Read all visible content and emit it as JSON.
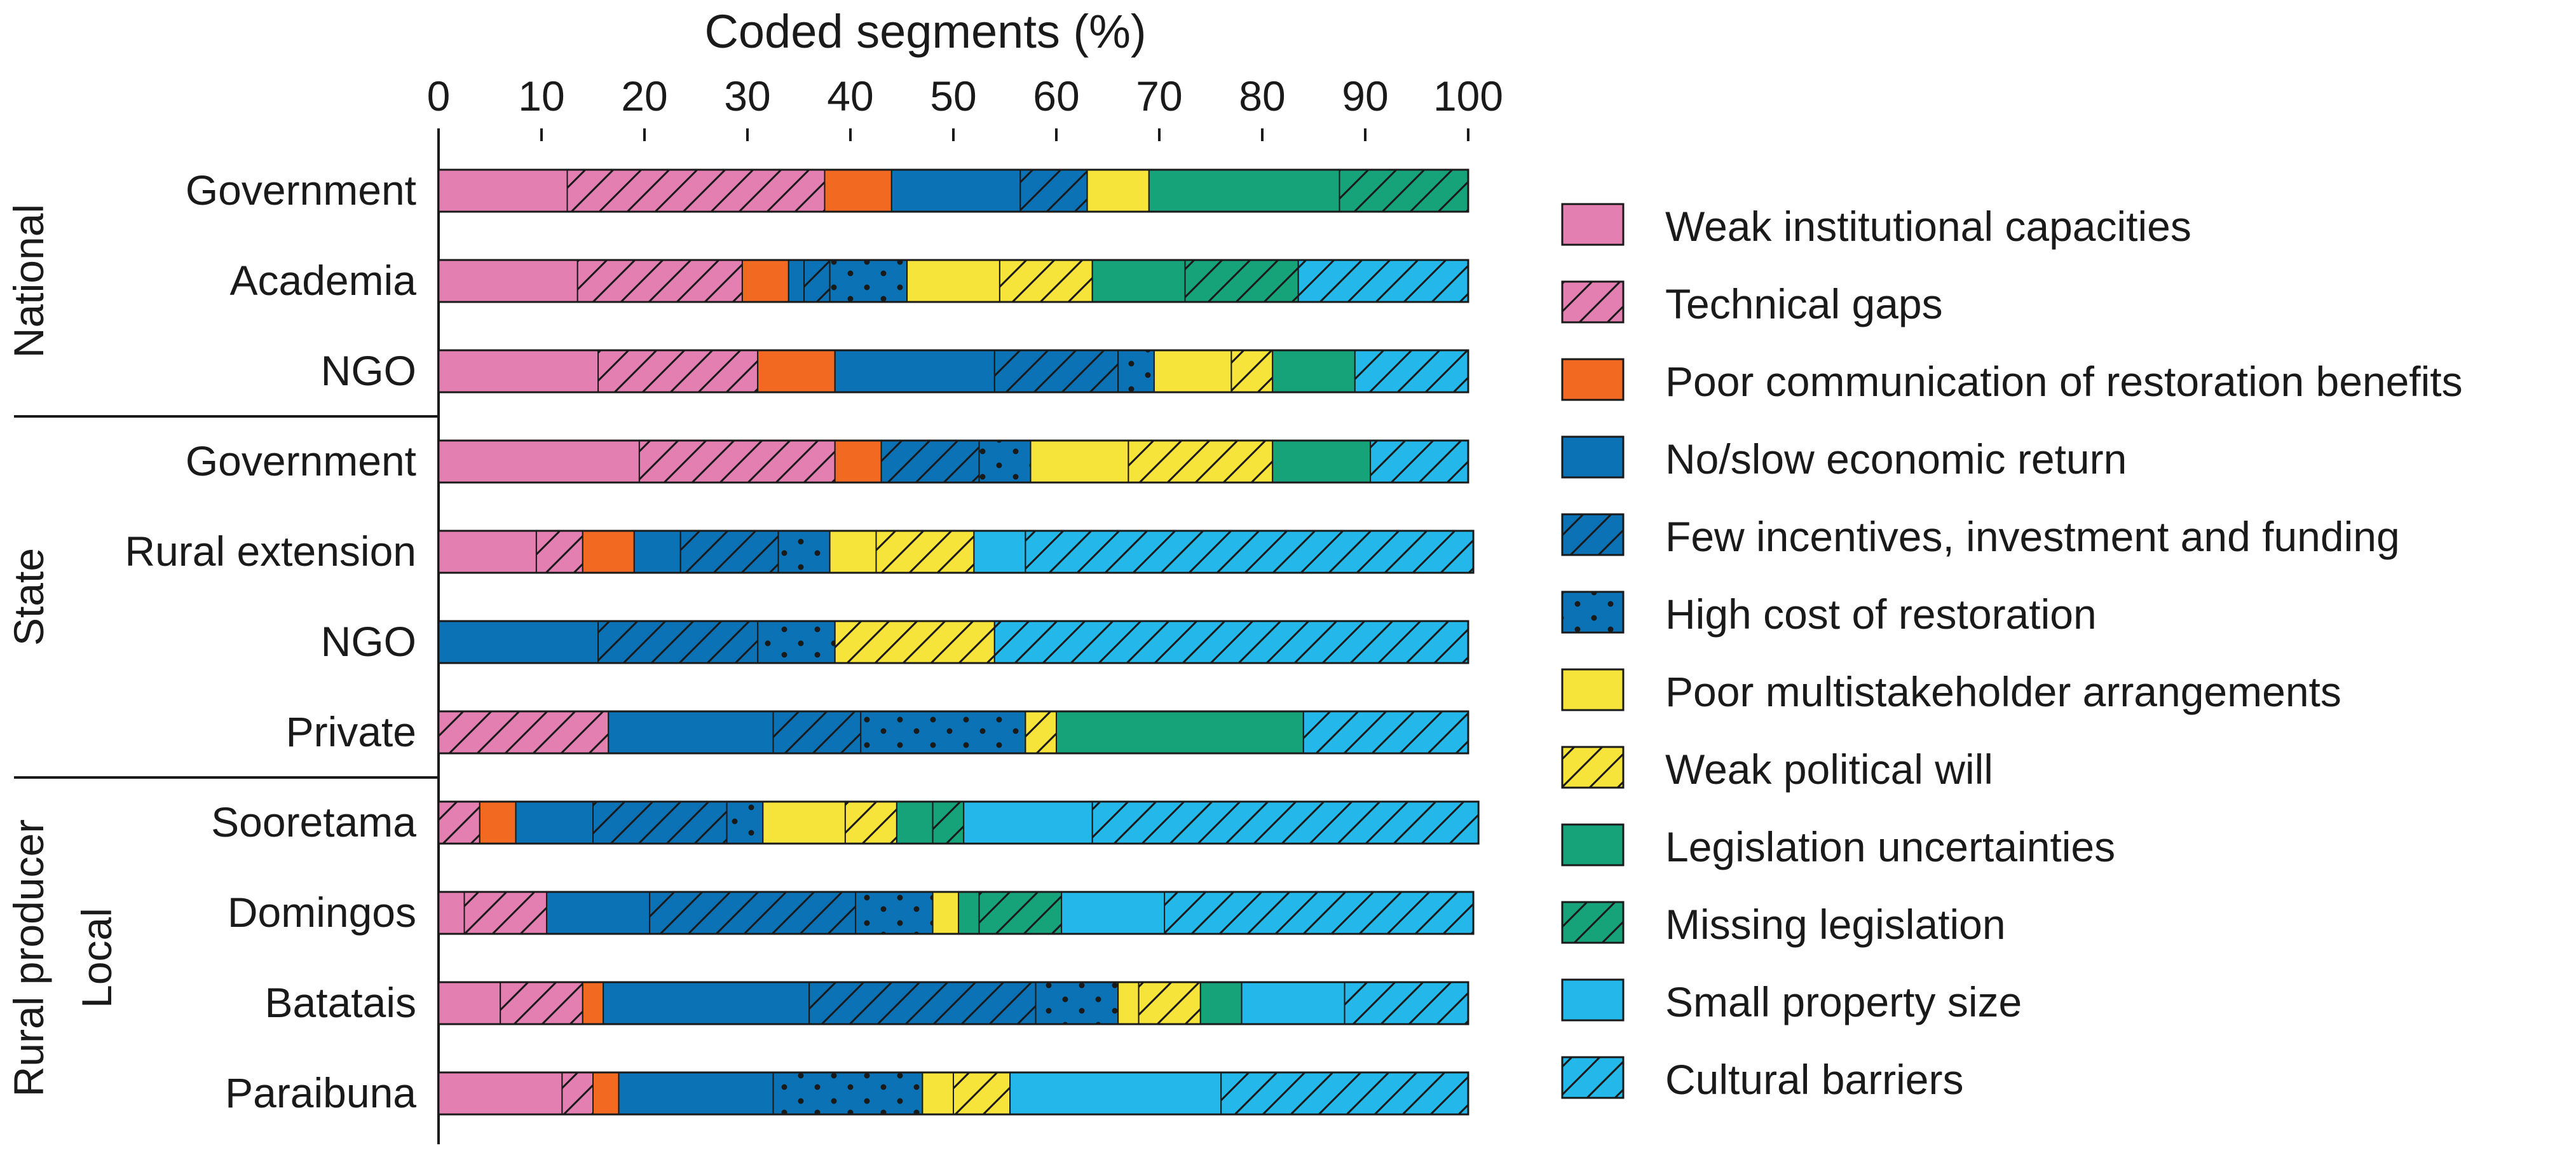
{
  "chart_data": {
    "type": "bar",
    "orientation": "horizontal",
    "stacked": true,
    "title": "Coded segments (%)",
    "xlabel": "Coded segments (%)",
    "ylabel": "",
    "xlim": [
      0,
      100
    ],
    "ticks": [
      "0",
      "10",
      "20",
      "30",
      "40",
      "50",
      "60",
      "70",
      "80",
      "90",
      "100"
    ],
    "groups": [
      {
        "label": "National",
        "rows": [
          0,
          2
        ]
      },
      {
        "label": "State",
        "rows": [
          3,
          6
        ]
      },
      {
        "label": "Local",
        "rows": [
          7,
          10
        ]
      }
    ],
    "subgroups": [
      {
        "label": "Rural producer",
        "rows": [
          7,
          10
        ]
      }
    ],
    "categories": [
      "Government",
      "Academia",
      "NGO",
      "Government",
      "Rural extension",
      "NGO",
      "Private",
      "Sooretama",
      "Domingos",
      "Batatais",
      "Paraibuna"
    ],
    "series": [
      {
        "name": "Weak institutional capacities",
        "color": "#e47fb1",
        "pattern": "solid",
        "values": [
          12.5,
          13.5,
          15.5,
          19.5,
          9.5,
          0,
          0,
          0,
          2.5,
          6,
          12
        ]
      },
      {
        "name": "Technical gaps",
        "color": "#e47fb1",
        "pattern": "hatch",
        "values": [
          25,
          16,
          15.5,
          19,
          4.5,
          0,
          16.5,
          4,
          8,
          8,
          3
        ]
      },
      {
        "name": "Poor communication of restoration benefits",
        "color": "#f26a21",
        "pattern": "solid",
        "values": [
          6.5,
          4.5,
          7.5,
          4.5,
          5,
          0,
          0,
          3.5,
          0,
          2,
          2.5
        ]
      },
      {
        "name": "No/slow economic return",
        "color": "#0a72b5",
        "pattern": "solid",
        "values": [
          12.5,
          1.5,
          15.5,
          0,
          4.5,
          15.5,
          16,
          7.5,
          10,
          20,
          15
        ]
      },
      {
        "name": "Few incentives, investment and funding",
        "color": "#0a72b5",
        "pattern": "hatch",
        "values": [
          6.5,
          2.5,
          12,
          9.5,
          9.5,
          15.5,
          8.5,
          13,
          20,
          22,
          0
        ]
      },
      {
        "name": "High cost of restoration",
        "color": "#0a72b5",
        "pattern": "dots",
        "values": [
          0,
          7.5,
          3.5,
          5,
          5,
          7.5,
          16,
          3.5,
          7.5,
          8,
          14.5
        ]
      },
      {
        "name": "Poor multistakeholder arrangements",
        "color": "#f6e43a",
        "pattern": "solid",
        "values": [
          6,
          9,
          7.5,
          9.5,
          4.5,
          0,
          0,
          8,
          2.5,
          2,
          3
        ]
      },
      {
        "name": "Weak political will",
        "color": "#f6e43a",
        "pattern": "hatch",
        "values": [
          0,
          9,
          4,
          14,
          9.5,
          15.5,
          3,
          5,
          0,
          6,
          5.5
        ]
      },
      {
        "name": "Legislation uncertainties",
        "color": "#17a37a",
        "pattern": "solid",
        "values": [
          18.5,
          9,
          8,
          9.5,
          0,
          0,
          24,
          3.5,
          2,
          4,
          0
        ]
      },
      {
        "name": "Missing legislation",
        "color": "#17a37a",
        "pattern": "hatch",
        "values": [
          12.5,
          11,
          0,
          0,
          0,
          0,
          0,
          3,
          8,
          0,
          0
        ]
      },
      {
        "name": "Small property size",
        "color": "#24b8ea",
        "pattern": "solid",
        "values": [
          0,
          0,
          0,
          0,
          5,
          0,
          0,
          12.5,
          10,
          10,
          20.5
        ]
      },
      {
        "name": "Cultural barriers",
        "color": "#24b8ea",
        "pattern": "hatch",
        "values": [
          0,
          16.5,
          11,
          9.5,
          43.5,
          46,
          16,
          37.5,
          30,
          12,
          24
        ]
      }
    ]
  }
}
